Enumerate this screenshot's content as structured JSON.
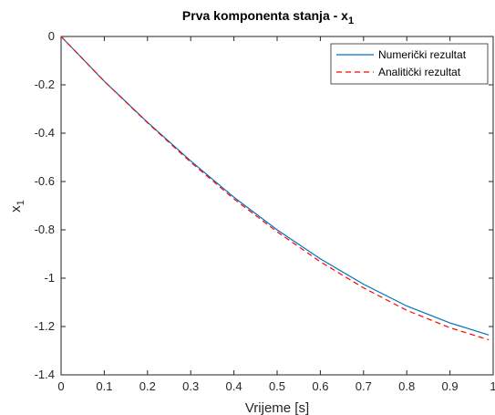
{
  "chart_data": {
    "type": "line",
    "title": "Prva komponenta stanja - x",
    "title_subscript": "1",
    "xlabel": "Vrijeme [s]",
    "ylabel": "x",
    "ylabel_subscript": "1",
    "xlim": [
      0,
      1
    ],
    "ylim": [
      -1.4,
      0
    ],
    "xticks": [
      0,
      0.1,
      0.2,
      0.3,
      0.4,
      0.5,
      0.6,
      0.7,
      0.8,
      0.9,
      1
    ],
    "xtick_labels": [
      "0",
      "0.1",
      "0.2",
      "0.3",
      "0.4",
      "0.5",
      "0.6",
      "0.7",
      "0.8",
      "0.9",
      "1"
    ],
    "yticks": [
      0,
      -0.2,
      -0.4,
      -0.6,
      -0.8,
      -1,
      -1.2,
      -1.4
    ],
    "ytick_labels": [
      "0",
      "-0.2",
      "-0.4",
      "-0.6",
      "-0.8",
      "-1",
      "-1.2",
      "-1.4"
    ],
    "grid": false,
    "legend_position": "top-right",
    "x": [
      0,
      0.1,
      0.2,
      0.3,
      0.4,
      0.5,
      0.6,
      0.7,
      0.8,
      0.9,
      0.99
    ],
    "series": [
      {
        "name": "Numerički rezultat",
        "color": "#0072BD",
        "style": "solid",
        "values": [
          0,
          -0.185,
          -0.355,
          -0.515,
          -0.665,
          -0.8,
          -0.92,
          -1.025,
          -1.115,
          -1.185,
          -1.235
        ]
      },
      {
        "name": "Analitički rezultat",
        "color": "#FF0000",
        "style": "dashed",
        "values": [
          0,
          -0.185,
          -0.357,
          -0.52,
          -0.672,
          -0.808,
          -0.932,
          -1.04,
          -1.133,
          -1.205,
          -1.255
        ]
      }
    ]
  }
}
